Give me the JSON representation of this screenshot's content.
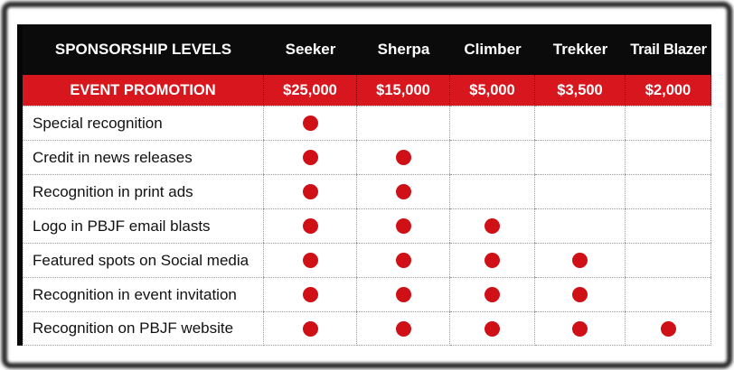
{
  "table": {
    "header": {
      "label": "SPONSORSHIP LEVELS",
      "columns": [
        "Seeker",
        "Sherpa",
        "Climber",
        "Trekker",
        "Trail Blazer"
      ]
    },
    "promo_row": {
      "label": "EVENT PROMOTION",
      "values": [
        "$25,000",
        "$15,000",
        "$5,000",
        "$3,500",
        "$2,000"
      ]
    },
    "rows": [
      {
        "label": "Special recognition",
        "dots": [
          true,
          false,
          false,
          false,
          false
        ]
      },
      {
        "label": "Credit in news releases",
        "dots": [
          true,
          true,
          false,
          false,
          false
        ]
      },
      {
        "label": "Recognition in print ads",
        "dots": [
          true,
          true,
          false,
          false,
          false
        ]
      },
      {
        "label": "Logo in PBJF email blasts",
        "dots": [
          true,
          true,
          true,
          false,
          false
        ]
      },
      {
        "label": "Featured spots on Social media",
        "dots": [
          true,
          true,
          true,
          true,
          false
        ]
      },
      {
        "label": "Recognition in  event invitation",
        "dots": [
          true,
          true,
          true,
          true,
          false
        ]
      },
      {
        "label": "Recognition on PBJF website",
        "dots": [
          true,
          true,
          true,
          true,
          true
        ]
      }
    ],
    "colors": {
      "header_bg": "#0b0b0b",
      "promo_bg": "#d8161e",
      "dot": "#cf1016",
      "text_light": "#ffffff",
      "text_dark": "#111111"
    }
  }
}
